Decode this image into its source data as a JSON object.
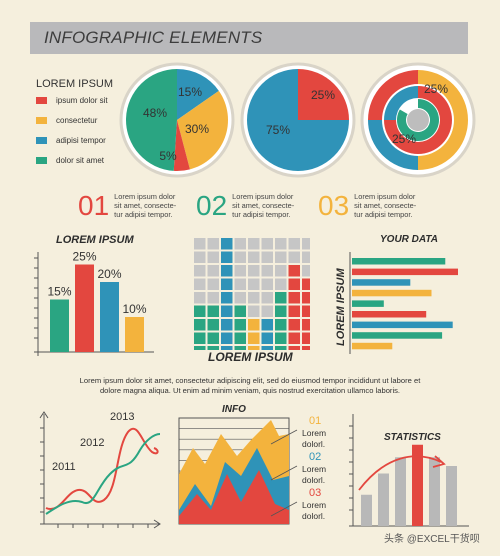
{
  "header": {
    "title": "INFOGRAPHIC ELEMENTS"
  },
  "legend": {
    "title": "LOREM IPSUM",
    "items": [
      {
        "label": "ipsum dolor sit",
        "color": "#e3473f"
      },
      {
        "label": "consectetur",
        "color": "#f3b33d"
      },
      {
        "label": "adipisi tempor",
        "color": "#2f93b8"
      },
      {
        "label": "dolor sit amet",
        "color": "#2aa582"
      }
    ]
  },
  "colors": {
    "red": "#e3473f",
    "yellow": "#f3b33d",
    "blue": "#2f93b8",
    "green": "#2aa582",
    "gray": "#b8b8b8",
    "ring": "#d9d4c8"
  },
  "numbered": [
    {
      "num": "01",
      "color": "#e3473f",
      "text": [
        "Lorem ipsum dolor",
        "sit amet, consecte-",
        "tur adipisi tempor."
      ]
    },
    {
      "num": "02",
      "color": "#2aa582",
      "text": [
        "Lorem ipsum dolor",
        "sit amet, consecte-",
        "tur adipisi tempor."
      ]
    },
    {
      "num": "03",
      "color": "#f3b33d",
      "text": [
        "Lorem ipsum dolor",
        "sit amet, consecte-",
        "tur adipisi tempor."
      ]
    }
  ],
  "waffle": {
    "title": "LOREM IPSUM"
  },
  "hbar": {
    "title": "YOUR DATA",
    "ylabel": "LOREM IPSUM"
  },
  "paragraph": {
    "line1": "Lorem ipsum dolor sit amet, consectetur adipiscing elit, sed do eiusmod tempor incididunt ut labore et",
    "line2": "dolore magna aliqua. Ut enim ad minim veniam, quis nostrud exercitation ullamco laboris."
  },
  "info": {
    "title": "INFO",
    "items": [
      {
        "num": "01",
        "color": "#f3b33d",
        "text": [
          "Lorem",
          "dolorl."
        ]
      },
      {
        "num": "02",
        "color": "#2f93b8",
        "text": [
          "Lorem",
          "dolorl."
        ]
      },
      {
        "num": "03",
        "color": "#e3473f",
        "text": [
          "Lorem",
          "dolorl."
        ]
      }
    ]
  },
  "stats": {
    "title": "STATISTICS"
  },
  "watermark": "头条 @EXCEL干货呗",
  "chart_data": [
    {
      "type": "pie",
      "labels": [
        "15%",
        "30%",
        "5%",
        "48%"
      ],
      "values": [
        15,
        30,
        5,
        48
      ],
      "colors": [
        "#2f93b8",
        "#f3b33d",
        "#e3473f",
        "#2aa582"
      ]
    },
    {
      "type": "pie",
      "labels": [
        "25%",
        "75%"
      ],
      "values": [
        25,
        75
      ],
      "colors": [
        "#e3473f",
        "#2f93b8"
      ]
    },
    {
      "type": "pie",
      "labels": [
        "25%",
        "25%"
      ],
      "values": [
        25,
        25
      ]
    },
    {
      "type": "bar",
      "title": "LOREM IPSUM",
      "values": [
        15,
        25,
        20,
        10
      ],
      "labels": [
        "15%",
        "25%",
        "20%",
        "10%"
      ],
      "colors": [
        "#2aa582",
        "#e3473f",
        "#2f93b8",
        "#f3b33d"
      ]
    },
    {
      "type": "heatmap",
      "title": "LOREM IPSUM",
      "columns": 9,
      "rows": 9,
      "column_colors": [
        "#2aa582",
        "#2aa582",
        "#2f93b8",
        "#2aa582",
        "#f3b33d",
        "#2f93b8",
        "#2aa582",
        "#e3473f",
        "#e3473f"
      ],
      "filled_rows": [
        4,
        4,
        9,
        4,
        3,
        3,
        5,
        7,
        6
      ]
    },
    {
      "type": "bar",
      "orientation": "horizontal",
      "title": "YOUR DATA",
      "ylabel": "LOREM IPSUM",
      "values": [
        88,
        100,
        55,
        75,
        30,
        70,
        95,
        85,
        38
      ],
      "colors": [
        "#2aa582",
        "#e3473f",
        "#2f93b8",
        "#f3b33d",
        "#2aa582",
        "#e3473f",
        "#2f93b8",
        "#2aa582",
        "#f3b33d"
      ]
    },
    {
      "type": "line",
      "labels": [
        "2011",
        "2012",
        "2013"
      ]
    },
    {
      "type": "area",
      "title": "INFO",
      "labels": [
        "01",
        "02",
        "03"
      ]
    },
    {
      "type": "bar",
      "title": "STATISTICS",
      "values": [
        25,
        42,
        55,
        65,
        55,
        48
      ],
      "colors": [
        "#b8b8b8",
        "#b8b8b8",
        "#b8b8b8",
        "#e3473f",
        "#b8b8b8",
        "#b8b8b8"
      ]
    }
  ]
}
